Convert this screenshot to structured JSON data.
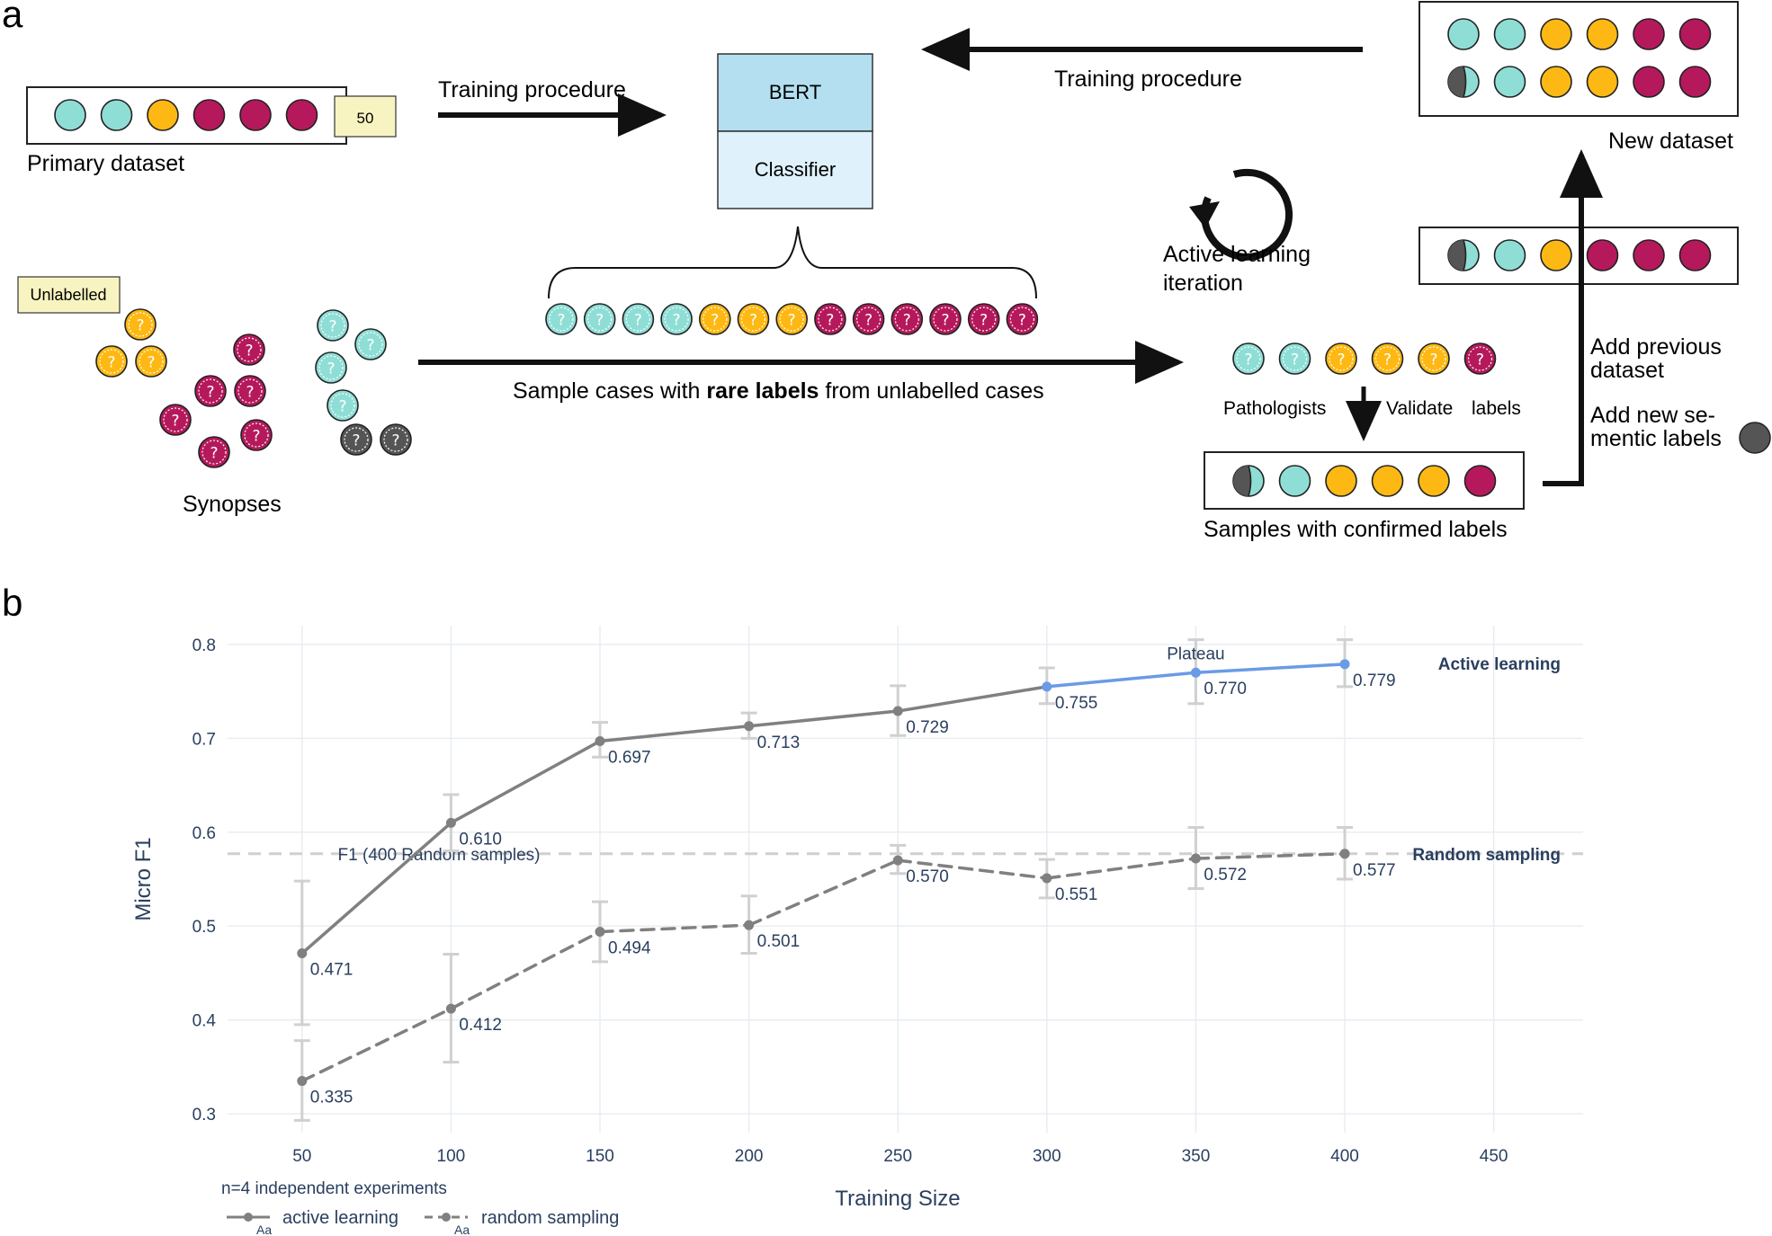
{
  "panel_a": {
    "letter": "a",
    "primary_dataset": {
      "label": "Primary dataset",
      "count_badge": "50"
    },
    "training_procedure_left": "Training procedure",
    "training_procedure_top": "Training procedure",
    "model": {
      "top": "BERT",
      "bottom": "Classifier"
    },
    "new_dataset": "New dataset",
    "active_learning": {
      "line1": "Active learning",
      "line2": "iteration"
    },
    "unlabelled_badge": "Unlabelled",
    "synopses": "Synopses",
    "sample_text": {
      "pre": "Sample cases with ",
      "bold": "rare labels",
      "post": " from unlabelled cases"
    },
    "pathologists": "Pathologists",
    "validate": "Validate",
    "labels_word": "labels",
    "samples_confirmed": "Samples with confirmed labels",
    "add_previous": {
      "line1": "Add previous",
      "line2": "dataset"
    },
    "add_new": {
      "line1": "Add new se-",
      "line2": "mentic labels"
    },
    "question_mark": "?",
    "colors": {
      "teal": "#8fded6",
      "yellow": "#fdb813",
      "magenta": "#b5195b",
      "grey": "#555555",
      "bert": "#b3dff0",
      "classifier": "#dff1fa",
      "badge": "#f8f4c1"
    }
  },
  "panel_b": {
    "letter": "b",
    "note": "n=4 independent experiments",
    "legend_glyph": "Aa",
    "chart_data": {
      "type": "line",
      "xlabel": "Training Size",
      "ylabel": "Micro F1",
      "xlim": [
        25,
        480
      ],
      "ylim": [
        0.28,
        0.82
      ],
      "xticks": [
        50,
        100,
        150,
        200,
        250,
        300,
        350,
        400,
        450
      ],
      "yticks": [
        0.3,
        0.4,
        0.5,
        0.6,
        0.7,
        0.8
      ],
      "series": [
        {
          "name": "active learning",
          "end_label": "Active learning",
          "x": [
            50,
            100,
            150,
            200,
            250,
            300,
            350,
            400
          ],
          "y": [
            0.471,
            0.61,
            0.697,
            0.713,
            0.729,
            0.755,
            0.77,
            0.779
          ],
          "labels": [
            "0.471",
            "0.610",
            "0.697",
            "0.713",
            "0.729",
            "0.755",
            "0.770",
            "0.779"
          ],
          "err_low": [
            0.395,
            0.58,
            0.68,
            0.7,
            0.703,
            0.737,
            0.737,
            0.755
          ],
          "err_high": [
            0.548,
            0.64,
            0.717,
            0.727,
            0.756,
            0.775,
            0.805,
            0.805
          ],
          "dash": false,
          "color": "#808080",
          "highlight_color": "#6a9be6",
          "highlight_from": 300
        },
        {
          "name": "random sampling",
          "end_label": "Random sampling",
          "x": [
            50,
            100,
            150,
            200,
            250,
            300,
            350,
            400
          ],
          "y": [
            0.335,
            0.412,
            0.494,
            0.501,
            0.57,
            0.551,
            0.572,
            0.577
          ],
          "labels": [
            "0.335",
            "0.412",
            "0.494",
            "0.501",
            "0.570",
            "0.551",
            "0.572",
            "0.577"
          ],
          "err_low": [
            0.293,
            0.355,
            0.462,
            0.471,
            0.556,
            0.53,
            0.54,
            0.55
          ],
          "err_high": [
            0.378,
            0.47,
            0.526,
            0.532,
            0.586,
            0.571,
            0.605,
            0.605
          ],
          "dash": true,
          "color": "#808080"
        }
      ],
      "reference_line": {
        "y": 0.577,
        "label": "F1 (400 Random samples)"
      },
      "annotation": {
        "text": "Plateau",
        "x": 350,
        "y": 0.79
      }
    }
  }
}
